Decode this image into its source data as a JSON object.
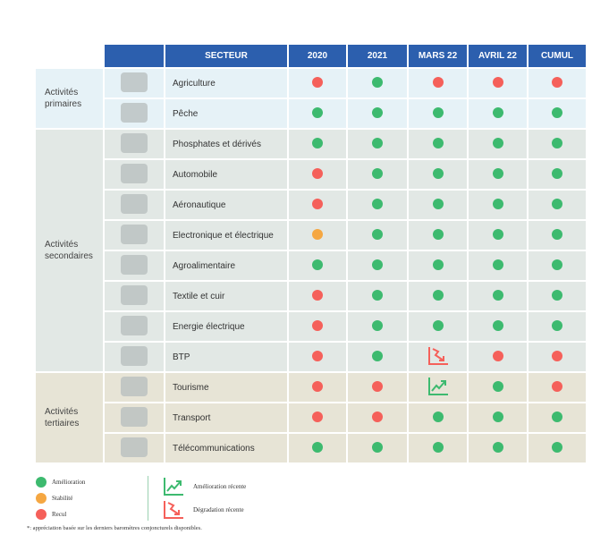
{
  "colors": {
    "green": "#3dba6f",
    "orange": "#f5a742",
    "red": "#f5605a",
    "header": "#2c5fae"
  },
  "header": {
    "sector": "SECTEUR",
    "cols": [
      "2020",
      "2021",
      "MARS 22",
      "AVRIL 22",
      "CUMUL"
    ]
  },
  "groups": {
    "primary": "Activités primaires",
    "secondary": "Activités secondaires",
    "tertiary": "Activités tertiaires"
  },
  "rows": [
    {
      "sector": "Agriculture",
      "icon": "plant-icon",
      "status": [
        "red",
        "green",
        "red",
        "red",
        "red"
      ]
    },
    {
      "sector": "Pêche",
      "icon": "fishing-boat-icon",
      "status": [
        "green",
        "green",
        "green",
        "green",
        "green"
      ]
    },
    {
      "sector": "Phosphates et dérivés",
      "icon": "ocp-logo-icon",
      "status": [
        "green",
        "green",
        "green",
        "green",
        "green"
      ]
    },
    {
      "sector": "Automobile",
      "icon": "car-icon",
      "status": [
        "red",
        "green",
        "green",
        "green",
        "green"
      ]
    },
    {
      "sector": "Aéronautique",
      "icon": "airplane-icon",
      "status": [
        "red",
        "green",
        "green",
        "green",
        "green"
      ]
    },
    {
      "sector": "Electronique et électrique",
      "icon": "chip-icon",
      "status": [
        "orange",
        "green",
        "green",
        "green",
        "green"
      ]
    },
    {
      "sector": "Agroalimentaire",
      "icon": "basket-icon",
      "status": [
        "green",
        "green",
        "green",
        "green",
        "green"
      ]
    },
    {
      "sector": "Textile et cuir",
      "icon": "jacket-icon",
      "status": [
        "red",
        "green",
        "green",
        "green",
        "green"
      ]
    },
    {
      "sector": "Energie électrique",
      "icon": "plug-icon",
      "status": [
        "red",
        "green",
        "green",
        "green",
        "green"
      ]
    },
    {
      "sector": "BTP",
      "icon": "crane-icon",
      "status": [
        "red",
        "green",
        "down",
        "red",
        "red"
      ]
    },
    {
      "sector": "Tourisme",
      "icon": "building-icon",
      "status": [
        "red",
        "red",
        "up",
        "green",
        "red"
      ]
    },
    {
      "sector": "Transport",
      "icon": "train-icon",
      "status": [
        "red",
        "red",
        "green",
        "green",
        "green"
      ]
    },
    {
      "sector": "Télécommunications",
      "icon": "antenna-icon",
      "status": [
        "green",
        "green",
        "green",
        "green",
        "green"
      ]
    }
  ],
  "legend": {
    "improvement": "Amélioration",
    "stability": "Stabilité",
    "decline": "Recul",
    "recent_improvement": "Amélioration récente",
    "recent_degradation": "Dégradation récente",
    "note": "*: appréciation basée sur les derniers baromètres conjoncturels disponibles."
  }
}
